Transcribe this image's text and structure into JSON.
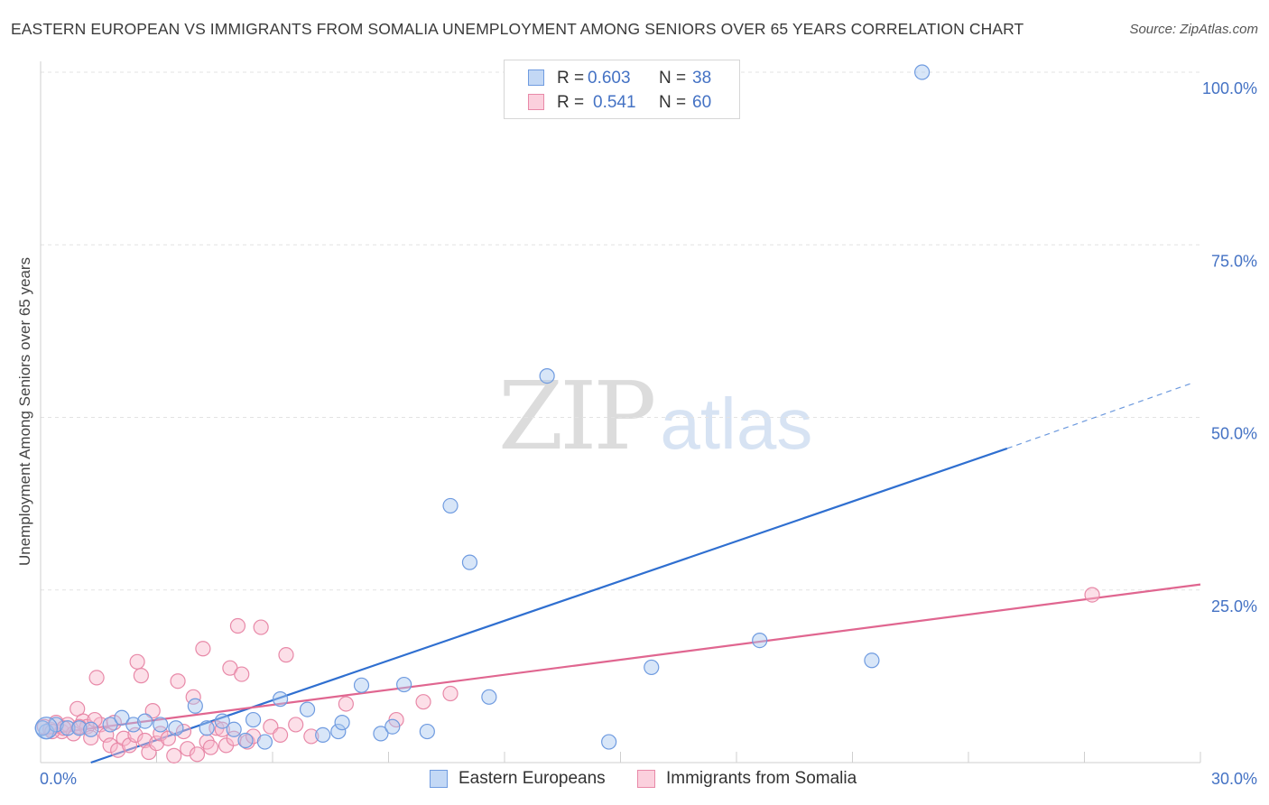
{
  "title": "EASTERN EUROPEAN VS IMMIGRANTS FROM SOMALIA UNEMPLOYMENT AMONG SENIORS OVER 65 YEARS CORRELATION CHART",
  "source": "Source: ZipAtlas.com",
  "watermark": {
    "zip": "ZIP",
    "atlas": "atlas"
  },
  "legend": {
    "r_label": "R =",
    "n_label": "N =",
    "series": [
      {
        "name": "Eastern Europeans",
        "r": "0.603",
        "n": "38",
        "color": "#a8c8f0",
        "stroke": "#6f9be0"
      },
      {
        "name": "Immigrants from Somalia",
        "r": "0.541",
        "n": "60",
        "color": "#f8b9cc",
        "stroke": "#e889a8"
      }
    ]
  },
  "chart_data": {
    "type": "scatter",
    "title": "EASTERN EUROPEAN VS IMMIGRANTS FROM SOMALIA UNEMPLOYMENT AMONG SENIORS OVER 65 YEARS CORRELATION CHART",
    "xlabel": "",
    "ylabel": "Unemployment Among Seniors over 65 years",
    "xlim": [
      0,
      30
    ],
    "ylim": [
      0,
      100
    ],
    "x_tick_labels": [
      {
        "value": 0,
        "label": "0.0%"
      },
      {
        "value": 30,
        "label": "30.0%"
      }
    ],
    "y_tick_labels": [
      {
        "value": 25,
        "label": "25.0%"
      },
      {
        "value": 50,
        "label": "50.0%"
      },
      {
        "value": 75,
        "label": "75.0%"
      },
      {
        "value": 100,
        "label": "100.0%"
      }
    ],
    "grid_y": [
      25,
      50,
      75,
      100
    ],
    "x_ticks": [
      3,
      6,
      9,
      12,
      15,
      18,
      21,
      24,
      27,
      30
    ],
    "series": [
      {
        "name": "Eastern Europeans",
        "color": "#a8c8f0",
        "stroke": "#6f9be0",
        "line_color": "#2f6fd0",
        "trend": {
          "x0": 1.3,
          "y0": 0,
          "x1": 25.0,
          "y1": 45.5,
          "dash_to_x": 29.8,
          "dash_to_y": 55.0
        },
        "points": [
          [
            0.15,
            4.5
          ],
          [
            0.4,
            5.5
          ],
          [
            0.7,
            5.0
          ],
          [
            1.0,
            5.0
          ],
          [
            1.3,
            4.8
          ],
          [
            1.8,
            5.5
          ],
          [
            2.1,
            6.5
          ],
          [
            2.4,
            5.5
          ],
          [
            2.7,
            6.0
          ],
          [
            3.1,
            5.5
          ],
          [
            3.5,
            5.0
          ],
          [
            4.0,
            8.2
          ],
          [
            4.3,
            5.0
          ],
          [
            4.7,
            6.0
          ],
          [
            5.0,
            4.8
          ],
          [
            5.3,
            3.2
          ],
          [
            5.5,
            6.2
          ],
          [
            5.8,
            3.0
          ],
          [
            6.2,
            9.2
          ],
          [
            6.9,
            7.7
          ],
          [
            7.3,
            4.0
          ],
          [
            7.7,
            4.5
          ],
          [
            7.8,
            5.8
          ],
          [
            8.3,
            11.2
          ],
          [
            8.8,
            4.2
          ],
          [
            9.1,
            5.2
          ],
          [
            9.4,
            11.3
          ],
          [
            10.0,
            4.5
          ],
          [
            10.6,
            37.2
          ],
          [
            11.1,
            29.0
          ],
          [
            11.6,
            9.5
          ],
          [
            13.1,
            56.0
          ],
          [
            14.7,
            3.0
          ],
          [
            15.8,
            13.8
          ],
          [
            18.6,
            17.7
          ],
          [
            21.5,
            14.8
          ],
          [
            22.8,
            100.0
          ],
          [
            0.05,
            5.0
          ]
        ]
      },
      {
        "name": "Immigrants from Somalia",
        "color": "#f8b9cc",
        "stroke": "#e889a8",
        "line_color": "#e06690",
        "trend": {
          "x0": 0,
          "y0": 4.0,
          "x1": 30.0,
          "y1": 25.8
        },
        "points": [
          [
            0.1,
            5.2
          ],
          [
            0.25,
            4.8
          ],
          [
            0.4,
            5.8
          ],
          [
            0.55,
            4.5
          ],
          [
            0.7,
            5.5
          ],
          [
            0.85,
            4.2
          ],
          [
            0.95,
            7.8
          ],
          [
            1.1,
            6.0
          ],
          [
            1.2,
            5.2
          ],
          [
            1.3,
            3.6
          ],
          [
            1.45,
            12.3
          ],
          [
            1.55,
            5.5
          ],
          [
            1.7,
            4.0
          ],
          [
            1.8,
            2.5
          ],
          [
            1.9,
            5.8
          ],
          [
            2.0,
            1.8
          ],
          [
            2.15,
            3.5
          ],
          [
            2.3,
            2.5
          ],
          [
            2.45,
            4.0
          ],
          [
            2.5,
            14.6
          ],
          [
            2.6,
            12.6
          ],
          [
            2.7,
            3.2
          ],
          [
            2.8,
            1.5
          ],
          [
            2.9,
            7.5
          ],
          [
            3.0,
            2.8
          ],
          [
            3.1,
            4.2
          ],
          [
            3.3,
            3.5
          ],
          [
            3.45,
            1.0
          ],
          [
            3.55,
            11.8
          ],
          [
            3.7,
            4.5
          ],
          [
            3.8,
            2.0
          ],
          [
            3.95,
            9.5
          ],
          [
            4.05,
            1.2
          ],
          [
            4.2,
            16.5
          ],
          [
            4.3,
            3.0
          ],
          [
            4.4,
            2.2
          ],
          [
            4.55,
            5.0
          ],
          [
            4.7,
            4.8
          ],
          [
            4.8,
            2.5
          ],
          [
            4.9,
            13.7
          ],
          [
            5.0,
            3.5
          ],
          [
            5.1,
            19.8
          ],
          [
            5.2,
            12.8
          ],
          [
            5.35,
            3.0
          ],
          [
            5.5,
            3.8
          ],
          [
            5.7,
            19.6
          ],
          [
            5.95,
            5.2
          ],
          [
            6.2,
            4.0
          ],
          [
            6.35,
            15.6
          ],
          [
            6.6,
            5.5
          ],
          [
            7.0,
            3.8
          ],
          [
            7.9,
            8.5
          ],
          [
            9.2,
            6.2
          ],
          [
            9.9,
            8.8
          ],
          [
            10.6,
            10.0
          ],
          [
            0.3,
            4.5
          ],
          [
            0.6,
            5.0
          ],
          [
            1.0,
            5.2
          ],
          [
            1.4,
            6.2
          ],
          [
            27.2,
            24.3
          ]
        ]
      }
    ]
  }
}
